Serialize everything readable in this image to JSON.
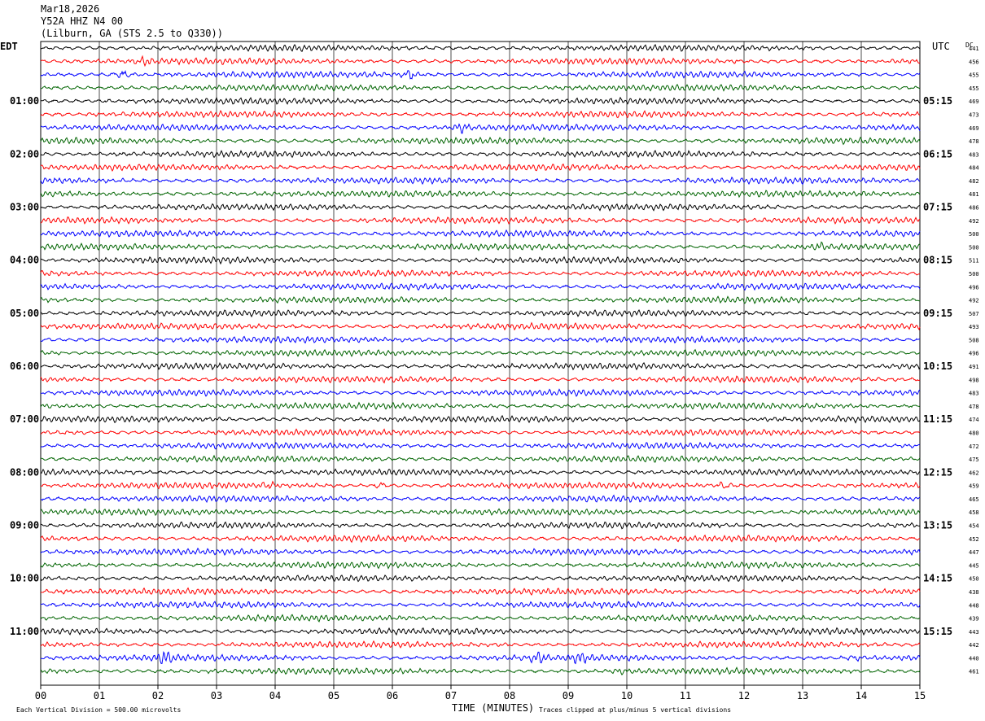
{
  "header": {
    "date": "Mar18,2026",
    "station": "Y52A HHZ N4 00",
    "location": "(Lilburn, GA (STS 2.5 to Q330))"
  },
  "labels": {
    "left_tz": "EDT",
    "right_tz": "UTC",
    "dc": "DC",
    "xlabel": "TIME (MINUTES)",
    "scale_note": "Each Vertical Division =  500.00 microvolts",
    "clip_note": "Traces clipped at plus/minus 5 vertical divisions"
  },
  "chart_data": {
    "type": "line",
    "xlim": [
      0,
      15
    ],
    "x_ticks": [
      "00",
      "01",
      "02",
      "03",
      "04",
      "05",
      "06",
      "07",
      "08",
      "09",
      "10",
      "11",
      "12",
      "13",
      "14",
      "15"
    ],
    "left_hour_labels": [
      "01:00",
      "02:00",
      "03:00",
      "04:00",
      "05:00",
      "06:00",
      "07:00",
      "08:00",
      "09:00",
      "10:00",
      "11:00"
    ],
    "right_hour_labels": [
      "05:15",
      "06:15",
      "07:15",
      "08:15",
      "09:15",
      "10:15",
      "11:15",
      "12:15",
      "13:15",
      "14:15",
      "15:15"
    ],
    "trace_colors": [
      "#000000",
      "#ff0000",
      "#0000ff",
      "#006400"
    ],
    "dc_offsets": [
      441,
      456,
      455,
      455,
      469,
      473,
      469,
      478,
      483,
      484,
      482,
      481,
      486,
      492,
      500,
      500,
      511,
      500,
      496,
      492,
      507,
      493,
      508,
      496,
      491,
      498,
      483,
      478,
      474,
      480,
      472,
      475,
      462,
      459,
      465,
      458,
      454,
      452,
      447,
      445,
      450,
      438,
      448,
      439,
      443,
      442,
      440,
      461
    ]
  }
}
